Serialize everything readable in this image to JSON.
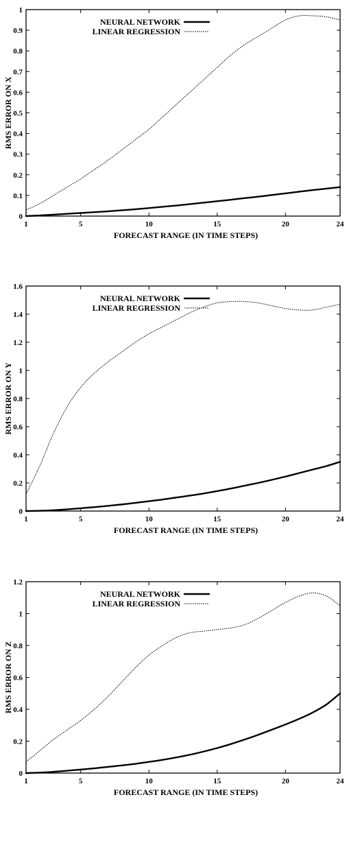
{
  "chart_data": [
    {
      "type": "line",
      "title": "",
      "xlabel": "FORECAST RANGE (IN TIME STEPS)",
      "ylabel": "RMS ERROR ON X",
      "xlim": [
        1,
        24
      ],
      "ylim": [
        0,
        1
      ],
      "x_ticks": [
        1,
        5,
        10,
        15,
        20,
        24
      ],
      "y_ticks": [
        0,
        0.1,
        0.2,
        0.3,
        0.4,
        0.5,
        0.6,
        0.7,
        0.8,
        0.9,
        1
      ],
      "y_tick_labels": [
        "0",
        "0.1",
        "0.2",
        "0.3",
        "0.4",
        "0.5",
        "0.6",
        "0.7",
        "0.8",
        "0.9",
        "1"
      ],
      "legend": "top-left",
      "grid": false,
      "x": [
        1,
        2,
        3,
        4,
        5,
        6,
        7,
        8,
        9,
        10,
        11,
        12,
        13,
        14,
        15,
        16,
        17,
        18,
        19,
        20,
        21,
        22,
        23,
        24
      ],
      "series": [
        {
          "name": "NEURAL NETWORK",
          "style": "solid",
          "values": [
            0.0,
            0.003,
            0.007,
            0.011,
            0.015,
            0.019,
            0.023,
            0.028,
            0.033,
            0.039,
            0.045,
            0.051,
            0.058,
            0.065,
            0.072,
            0.079,
            0.087,
            0.094,
            0.102,
            0.11,
            0.118,
            0.126,
            0.133,
            0.14
          ]
        },
        {
          "name": "LINEAR REGRESSION",
          "style": "dotted",
          "values": [
            0.03,
            0.06,
            0.1,
            0.14,
            0.18,
            0.225,
            0.27,
            0.32,
            0.37,
            0.42,
            0.48,
            0.54,
            0.6,
            0.66,
            0.72,
            0.78,
            0.83,
            0.87,
            0.91,
            0.95,
            0.97,
            0.97,
            0.965,
            0.95
          ]
        }
      ]
    },
    {
      "type": "line",
      "title": "",
      "xlabel": "FORECAST RANGE (IN TIME STEPS)",
      "ylabel": "RMS ERROR ON Y",
      "xlim": [
        1,
        24
      ],
      "ylim": [
        0,
        1.6
      ],
      "x_ticks": [
        1,
        5,
        10,
        15,
        20,
        24
      ],
      "y_ticks": [
        0,
        0.2,
        0.4,
        0.6,
        0.8,
        1,
        1.2,
        1.4,
        1.6
      ],
      "y_tick_labels": [
        "0",
        "0.2",
        "0.4",
        "0.6",
        "0.8",
        "1",
        "1.2",
        "1.4",
        "1.6"
      ],
      "legend": "top-left",
      "grid": false,
      "x": [
        1,
        2,
        3,
        4,
        5,
        6,
        7,
        8,
        9,
        10,
        11,
        12,
        13,
        14,
        15,
        16,
        17,
        18,
        19,
        20,
        21,
        22,
        23,
        24
      ],
      "series": [
        {
          "name": "NEURAL NETWORK",
          "style": "solid",
          "values": [
            0.0,
            0.002,
            0.006,
            0.012,
            0.02,
            0.028,
            0.037,
            0.047,
            0.058,
            0.07,
            0.082,
            0.096,
            0.11,
            0.125,
            0.142,
            0.16,
            0.18,
            0.2,
            0.222,
            0.245,
            0.27,
            0.295,
            0.32,
            0.35
          ]
        },
        {
          "name": "LINEAR REGRESSION",
          "style": "dotted",
          "values": [
            0.12,
            0.32,
            0.55,
            0.74,
            0.88,
            0.98,
            1.06,
            1.13,
            1.2,
            1.26,
            1.31,
            1.36,
            1.41,
            1.45,
            1.48,
            1.49,
            1.49,
            1.48,
            1.46,
            1.44,
            1.43,
            1.43,
            1.45,
            1.47
          ]
        }
      ]
    },
    {
      "type": "line",
      "title": "",
      "xlabel": "FORECAST RANGE (IN TIME STEPS)",
      "ylabel": "RMS ERROR ON Z",
      "xlim": [
        1,
        24
      ],
      "ylim": [
        0,
        1.2
      ],
      "x_ticks": [
        1,
        5,
        10,
        15,
        20,
        24
      ],
      "y_ticks": [
        0,
        0.2,
        0.4,
        0.6,
        0.8,
        1,
        1.2
      ],
      "y_tick_labels": [
        "0",
        "0.2",
        "0.4",
        "0.6",
        "0.8",
        "1",
        "1.2"
      ],
      "legend": "top-left",
      "grid": false,
      "x": [
        1,
        2,
        3,
        4,
        5,
        6,
        7,
        8,
        9,
        10,
        11,
        12,
        13,
        14,
        15,
        16,
        17,
        18,
        19,
        20,
        21,
        22,
        23,
        24
      ],
      "series": [
        {
          "name": "NEURAL NETWORK",
          "style": "solid",
          "values": [
            0.0,
            0.003,
            0.008,
            0.015,
            0.022,
            0.03,
            0.039,
            0.048,
            0.058,
            0.07,
            0.083,
            0.098,
            0.115,
            0.135,
            0.157,
            0.182,
            0.21,
            0.24,
            0.272,
            0.305,
            0.34,
            0.38,
            0.43,
            0.5
          ]
        },
        {
          "name": "LINEAR REGRESSION",
          "style": "dotted",
          "values": [
            0.07,
            0.14,
            0.21,
            0.27,
            0.33,
            0.4,
            0.48,
            0.57,
            0.66,
            0.74,
            0.8,
            0.85,
            0.88,
            0.89,
            0.9,
            0.91,
            0.93,
            0.97,
            1.02,
            1.07,
            1.11,
            1.13,
            1.11,
            1.05
          ]
        }
      ]
    }
  ]
}
